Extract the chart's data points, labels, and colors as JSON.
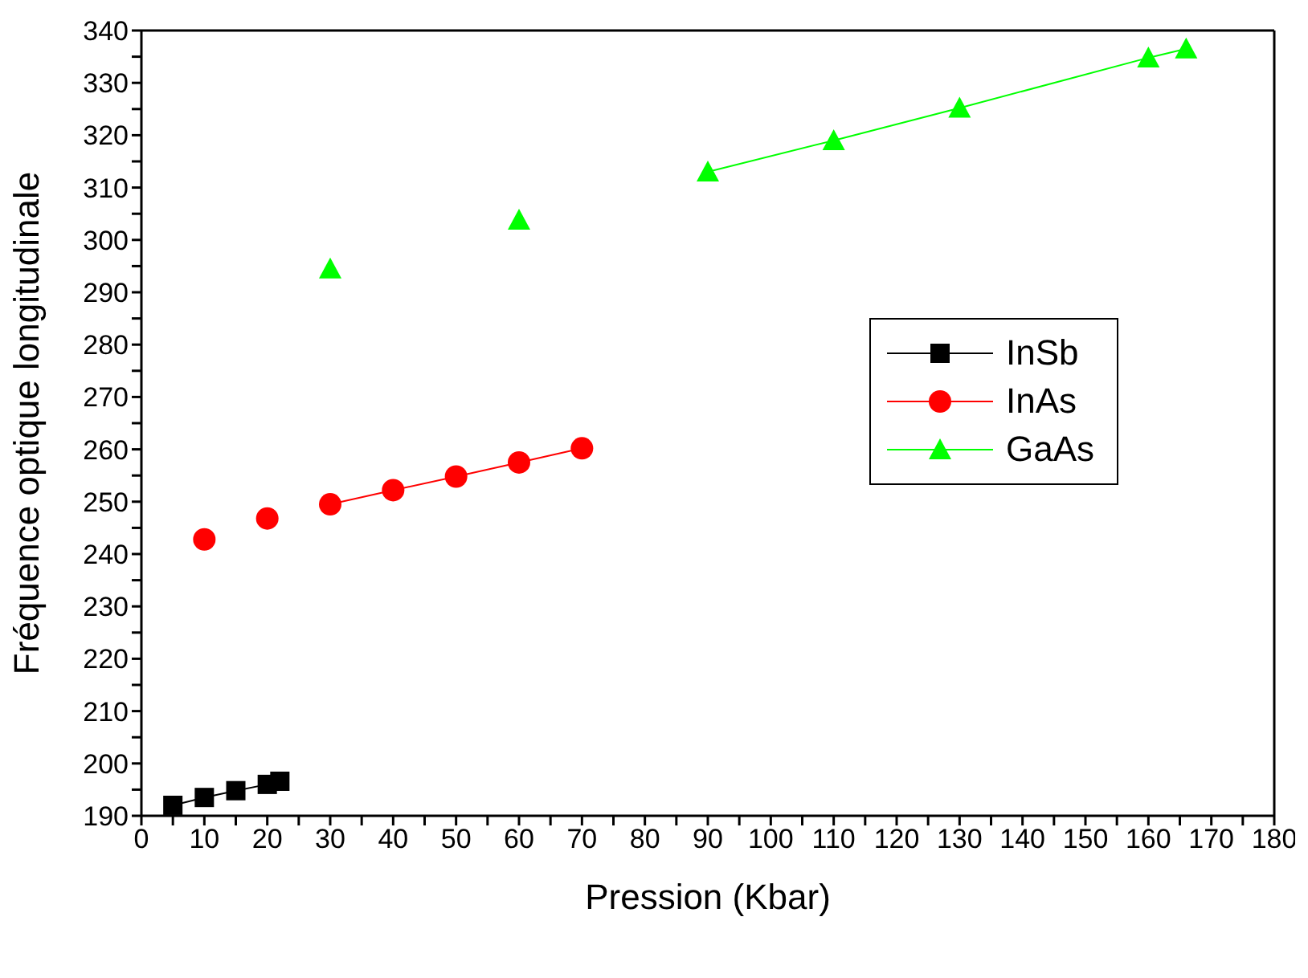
{
  "chart_data": {
    "type": "line",
    "xlabel": "Pression (Kbar)",
    "ylabel": "Fréquence optique longitudinale",
    "xlim": [
      0,
      180
    ],
    "ylim": [
      190,
      340
    ],
    "xticks": [
      0,
      {
        "value": 5,
        "label": null
      },
      10,
      {
        "value": 15,
        "label": null
      },
      20,
      {
        "value": 25,
        "label": null
      },
      30,
      {
        "value": 35,
        "label": null
      },
      40,
      {
        "value": 45,
        "label": null
      },
      50,
      {
        "value": 55,
        "label": null
      },
      60,
      {
        "value": 65,
        "label": null
      },
      70,
      {
        "value": 75,
        "label": null
      },
      80,
      {
        "value": 85,
        "label": null
      },
      90,
      {
        "value": 95,
        "label": null
      },
      100,
      {
        "value": 105,
        "label": null
      },
      110,
      {
        "value": 115,
        "label": null
      },
      120,
      {
        "value": 125,
        "label": null
      },
      130,
      {
        "value": 135,
        "label": null
      },
      140,
      {
        "value": 145,
        "label": null
      },
      150,
      {
        "value": 155,
        "label": null
      },
      160,
      {
        "value": 165,
        "label": null
      },
      170,
      {
        "value": 175,
        "label": null
      },
      180
    ],
    "yticks": [
      190,
      {
        "value": 195,
        "label": null
      },
      200,
      {
        "value": 205,
        "label": null
      },
      210,
      {
        "value": 215,
        "label": null
      },
      220,
      {
        "value": 225,
        "label": null
      },
      230,
      {
        "value": 235,
        "label": null
      },
      240,
      {
        "value": 245,
        "label": null
      },
      250,
      {
        "value": 255,
        "label": null
      },
      260,
      {
        "value": 265,
        "label": null
      },
      270,
      {
        "value": 275,
        "label": null
      },
      280,
      {
        "value": 285,
        "label": null
      },
      290,
      {
        "value": 295,
        "label": null
      },
      300,
      {
        "value": 305,
        "label": null
      },
      310,
      {
        "value": 315,
        "label": null
      },
      320,
      {
        "value": 325,
        "label": null
      },
      330,
      {
        "value": 335,
        "label": null
      },
      340
    ],
    "grid": false,
    "legend": "right",
    "line_style": "solid",
    "series": [
      {
        "name": "InSb",
        "marker": "square",
        "color": "#000000",
        "x": [
          5,
          10,
          15,
          20,
          22
        ],
        "values": [
          192,
          193.5,
          194.8,
          196,
          196.6
        ]
      },
      {
        "name": "InAs",
        "marker": "circle",
        "color": "#ff0000",
        "x": [
          30,
          40,
          50,
          60,
          70
        ],
        "values": [
          249.5,
          252.2,
          254.8,
          257.5,
          260.2
        ]
      },
      {
        "type": "scatter",
        "marker": "circle",
        "color": "#ff0000",
        "x": [
          10,
          20
        ],
        "values": [
          242.8,
          246.8
        ]
      },
      {
        "name": "GaAs",
        "marker": "triangle",
        "color": "#00ff00",
        "x": [
          90,
          110,
          130,
          160,
          166
        ],
        "values": [
          313,
          319,
          325.2,
          334.8,
          336.5
        ]
      },
      {
        "type": "scatter",
        "marker": "triangle",
        "color": "#00ff00",
        "x": [
          30,
          60
        ],
        "values": [
          294.5,
          303.8
        ]
      }
    ]
  }
}
